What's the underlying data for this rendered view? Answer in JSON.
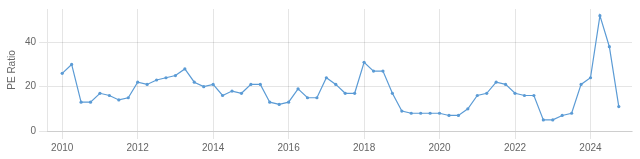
{
  "chart_data": {
    "type": "line",
    "ylabel": "PE Ratio",
    "color": "#5b9bd5",
    "marker": "circle",
    "grid": true,
    "xlim": [
      2009.6,
      2025.1
    ],
    "xticks": [
      2010,
      2012,
      2014,
      2016,
      2018,
      2020,
      2022,
      2024
    ],
    "ylim": [
      0,
      55
    ],
    "yticks": [
      0,
      20,
      40
    ],
    "x": [
      2010.0,
      2010.25,
      2010.5,
      2010.75,
      2011.0,
      2011.25,
      2011.5,
      2011.75,
      2012.0,
      2012.25,
      2012.5,
      2012.75,
      2013.0,
      2013.25,
      2013.5,
      2013.75,
      2014.0,
      2014.25,
      2014.5,
      2014.75,
      2015.0,
      2015.25,
      2015.5,
      2015.75,
      2016.0,
      2016.25,
      2016.5,
      2016.75,
      2017.0,
      2017.25,
      2017.5,
      2017.75,
      2018.0,
      2018.25,
      2018.5,
      2018.75,
      2019.0,
      2019.25,
      2019.5,
      2019.75,
      2020.0,
      2020.25,
      2020.5,
      2020.75,
      2021.0,
      2021.25,
      2021.5,
      2021.75,
      2022.0,
      2022.25,
      2022.5,
      2022.75,
      2023.0,
      2023.25,
      2023.5,
      2023.75,
      2024.0,
      2024.25,
      2024.5,
      2024.75
    ],
    "values": [
      26.0,
      30.0,
      13.0,
      13.0,
      17.0,
      16.0,
      14.0,
      15.0,
      22.0,
      21.0,
      23.0,
      24.0,
      25.0,
      28.0,
      22.0,
      20.0,
      21.0,
      16.0,
      18.0,
      17.0,
      21.0,
      21.0,
      13.0,
      12.0,
      13.0,
      19.0,
      15.0,
      15.0,
      24.0,
      21.0,
      17.0,
      17.0,
      31.0,
      27.0,
      27.0,
      17.0,
      9.0,
      8.0,
      8.0,
      8.0,
      8.0,
      7.0,
      7.0,
      10.0,
      16.0,
      17.0,
      22.0,
      21.0,
      17.0,
      16.0,
      16.0,
      5.0,
      5.0,
      7.0,
      8.0,
      21.0,
      24.0,
      52.0,
      38.0,
      11.0
    ]
  }
}
